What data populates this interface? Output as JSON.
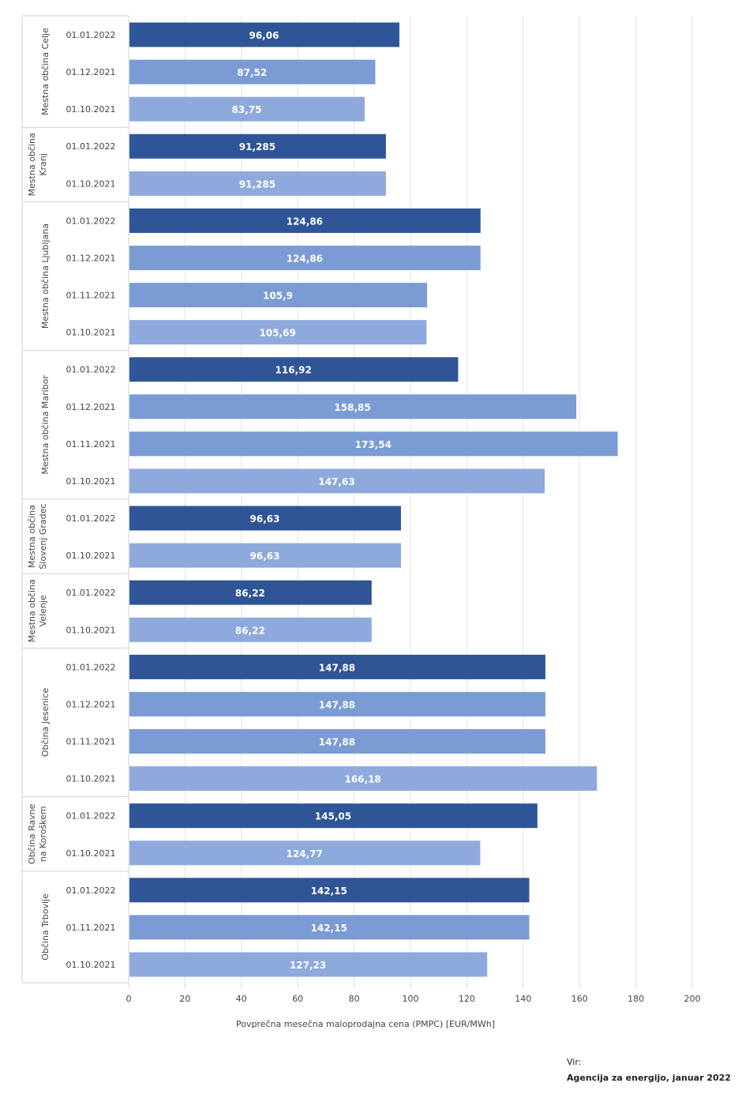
{
  "chart_data": {
    "type": "bar",
    "orientation": "horizontal",
    "title": "",
    "xlabel": "Povprečna mesečna maloprodajna cena (PMPC) [EUR/MWh]",
    "ylabel": "",
    "xlim": [
      0,
      200
    ],
    "xticks": [
      0,
      20,
      40,
      60,
      80,
      100,
      120,
      140,
      160,
      180,
      200
    ],
    "grid": true,
    "legend": "none",
    "colors": {
      "01.01.2022": "#2f5597",
      "01.12.2021": "#7b9bd5",
      "01.11.2021": "#7b9bd5",
      "01.10.2021": "#8eaadc"
    },
    "groups": [
      {
        "name": [
          "Mestna občina Celje"
        ],
        "bars": [
          {
            "date": "01.01.2022",
            "value": 96.06,
            "label": "96,06"
          },
          {
            "date": "01.12.2021",
            "value": 87.52,
            "label": "87,52"
          },
          {
            "date": "01.10.2021",
            "value": 83.75,
            "label": "83,75"
          }
        ]
      },
      {
        "name": [
          "Mestna občina",
          "Kranj"
        ],
        "bars": [
          {
            "date": "01.01.2022",
            "value": 91.285,
            "label": "91,285"
          },
          {
            "date": "01.10.2021",
            "value": 91.285,
            "label": "91,285"
          }
        ]
      },
      {
        "name": [
          "Mestna občina Ljubljana"
        ],
        "bars": [
          {
            "date": "01.01.2022",
            "value": 124.86,
            "label": "124,86"
          },
          {
            "date": "01.12.2021",
            "value": 124.86,
            "label": "124,86"
          },
          {
            "date": "01.11.2021",
            "value": 105.9,
            "label": "105,9"
          },
          {
            "date": "01.10.2021",
            "value": 105.69,
            "label": "105,69"
          }
        ]
      },
      {
        "name": [
          "Mestna občina Maribor"
        ],
        "bars": [
          {
            "date": "01.01.2022",
            "value": 116.92,
            "label": "116,92"
          },
          {
            "date": "01.12.2021",
            "value": 158.85,
            "label": "158,85"
          },
          {
            "date": "01.11.2021",
            "value": 173.54,
            "label": "173,54"
          },
          {
            "date": "01.10.2021",
            "value": 147.63,
            "label": "147,63"
          }
        ]
      },
      {
        "name": [
          "Mestna občina",
          "Slovenj Gradec"
        ],
        "bars": [
          {
            "date": "01.01.2022",
            "value": 96.63,
            "label": "96,63"
          },
          {
            "date": "01.10.2021",
            "value": 96.63,
            "label": "96,63"
          }
        ]
      },
      {
        "name": [
          "Mestna občina",
          "Velenje"
        ],
        "bars": [
          {
            "date": "01.01.2022",
            "value": 86.22,
            "label": "86,22"
          },
          {
            "date": "01.10.2021",
            "value": 86.22,
            "label": "86,22"
          }
        ]
      },
      {
        "name": [
          "Občina Jesenice"
        ],
        "bars": [
          {
            "date": "01.01.2022",
            "value": 147.88,
            "label": "147,88"
          },
          {
            "date": "01.12.2021",
            "value": 147.88,
            "label": "147,88"
          },
          {
            "date": "01.11.2021",
            "value": 147.88,
            "label": "147,88"
          },
          {
            "date": "01.10.2021",
            "value": 166.18,
            "label": "166,18"
          }
        ]
      },
      {
        "name": [
          "Občina Ravne",
          "na Koroškem"
        ],
        "bars": [
          {
            "date": "01.01.2022",
            "value": 145.05,
            "label": "145,05"
          },
          {
            "date": "01.10.2021",
            "value": 124.77,
            "label": "124,77"
          }
        ]
      },
      {
        "name": [
          "Občina Trbovlje"
        ],
        "bars": [
          {
            "date": "01.01.2022",
            "value": 142.15,
            "label": "142,15"
          },
          {
            "date": "01.11.2021",
            "value": 142.15,
            "label": "142,15"
          },
          {
            "date": "01.10.2021",
            "value": 127.23,
            "label": "127,23"
          }
        ]
      }
    ]
  },
  "source": {
    "label": "Vir:",
    "text": "Agencija za energijo, januar 2022"
  }
}
